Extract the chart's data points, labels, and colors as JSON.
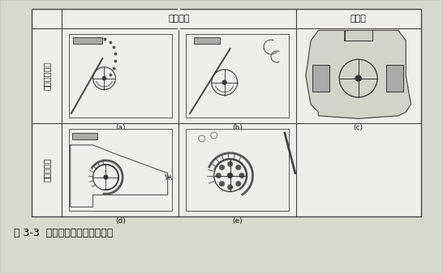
{
  "title": "图 3-3  单转子反击式破碎机分类",
  "col_headers": [
    "不可逆式",
    "可逆式"
  ],
  "row_headers": [
    "不带匀整篦板",
    "带匀整篦板"
  ],
  "cell_labels": [
    "(a)",
    "(b)",
    "(c)",
    "(d)",
    "(e)"
  ],
  "bg_color": "#e8e8e0",
  "table_line_color": "#444444",
  "text_color": "#111111",
  "figure_bg": "#d8d8d0",
  "cell_bg": "#e0e0d8"
}
